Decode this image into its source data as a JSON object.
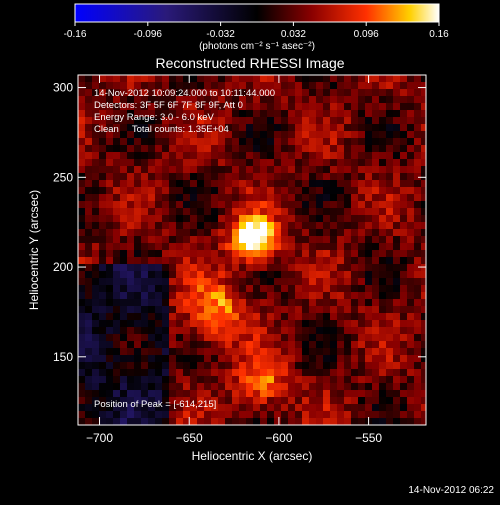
{
  "colorbar": {
    "tick_labels": [
      "-0.16",
      "-0.096",
      "-0.032",
      "0.032",
      "0.096",
      "0.16"
    ],
    "tick_values": [
      -0.16,
      -0.096,
      -0.032,
      0.032,
      0.096,
      0.16
    ],
    "range": [
      -0.16,
      0.16
    ],
    "colormap": "blue-black-red-yellow-white",
    "unit_label": "(photons cm⁻² s⁻¹ asec⁻²)"
  },
  "chart_data": {
    "type": "heatmap",
    "title": "Reconstructed RHESSI Image",
    "xlabel": "Heliocentric X (arcsec)",
    "ylabel": "Heliocentric Y (arcsec)",
    "xlim": [
      -712,
      -518
    ],
    "ylim": [
      112,
      307
    ],
    "x_ticks": [
      -700,
      -650,
      -600,
      -550
    ],
    "x_tick_labels": [
      "−700",
      "−650",
      "−600",
      "−550"
    ],
    "y_ticks": [
      150,
      200,
      250,
      300
    ],
    "y_tick_labels": [
      "150",
      "200",
      "250",
      "300"
    ],
    "peak": {
      "x": -614,
      "y": 215,
      "value": 0.16
    },
    "secondary_sources": [
      {
        "x": -635,
        "y": 175,
        "value": 0.09
      },
      {
        "x": -610,
        "y": 135,
        "value": 0.08
      }
    ],
    "value_range": [
      -0.16,
      0.16
    ],
    "info_lines": [
      "14-Nov-2012 10:09:24.000 to 10:11:44.000",
      "Detectors: 3F 5F 6F 7F 8F 9F, Att 0",
      "Energy Range: 3.0 - 6.0 keV",
      "Clean     Total counts: 1.35E+04"
    ],
    "peak_label": "Position of Peak = [-614,215]"
  },
  "footer": {
    "timestamp": "14-Nov-2012 06:22"
  }
}
